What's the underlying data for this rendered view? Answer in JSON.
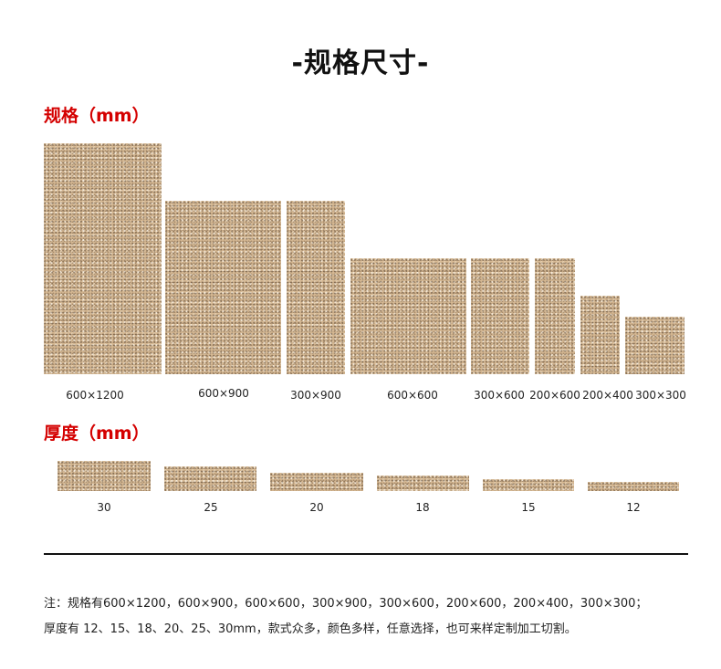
{
  "title": "-规格尺寸-",
  "spec_heading": "规格（mm）",
  "thickness_heading": "厚度（mm）",
  "accent_color": "#d40000",
  "specs": [
    {
      "label": "600×1200"
    },
    {
      "label": "600×900"
    },
    {
      "label": "300×900"
    },
    {
      "label": "600×600"
    },
    {
      "label": "300×600"
    },
    {
      "label": "200×600"
    },
    {
      "label": "200×400"
    },
    {
      "label": "300×300"
    }
  ],
  "thicknesses": [
    {
      "label": "30"
    },
    {
      "label": "25"
    },
    {
      "label": "20"
    },
    {
      "label": "18"
    },
    {
      "label": "15"
    },
    {
      "label": "12"
    }
  ],
  "notes": {
    "line1": "注：规格有600×1200，600×900，600×600，300×900，300×600，200×600，200×400，300×300；",
    "line2": "厚度有 12、15、18、20、25、30mm，款式众多，颜色多样，任意选择，也可来样定制加工切割。"
  }
}
